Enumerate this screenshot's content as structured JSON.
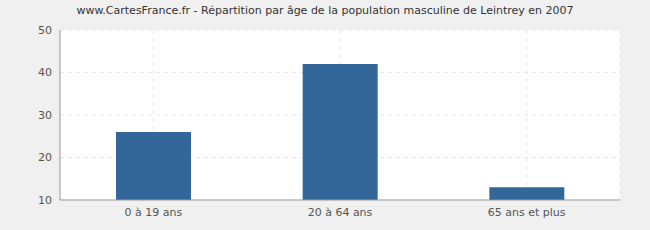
{
  "chart_data": {
    "type": "bar",
    "title": "www.CartesFrance.fr - Répartition par âge de la population masculine de Leintrey en 2007",
    "categories": [
      "0 à 19 ans",
      "20 à 64 ans",
      "65 ans et plus"
    ],
    "values": [
      26,
      42,
      13
    ],
    "color": "#336699",
    "ylim": [
      10,
      50
    ],
    "yticks": [
      10,
      20,
      30,
      40,
      50
    ],
    "grid": true
  }
}
